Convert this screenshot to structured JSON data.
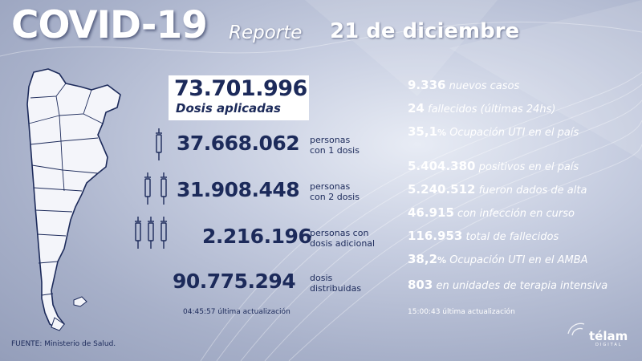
{
  "header": {
    "title": "COVID-19",
    "report_label": "Reporte",
    "date": "21 de diciembre"
  },
  "vaccination": {
    "total_value": "73.701.996",
    "total_label": "Dosis aplicadas",
    "one_dose_value": "37.668.062",
    "one_dose_label": "personas con 1 dosis",
    "two_doses_value": "31.908.448",
    "two_doses_label": "personas con 2 dosis",
    "additional_value": "2.216.196",
    "additional_label": "personas con dosis adicional",
    "distributed_value": "90.775.294",
    "distributed_label": "dosis distribuidas",
    "last_update": "04:45:57 última actualización"
  },
  "cases": {
    "new_cases_value": "9.336",
    "new_cases_label": "nuevos casos",
    "deaths_value": "24",
    "deaths_label": "fallecidos (últimas 24hs)",
    "icu_country_value": "35,1",
    "icu_country_pct": "%",
    "icu_country_label": "Ocupación UTI en el país",
    "positives_value": "5.404.380",
    "positives_label": "positivos en el país",
    "discharged_value": "5.240.512",
    "discharged_label": "fueron dados de alta",
    "active_value": "46.915",
    "active_label": "con infección en curso",
    "total_deaths_value": "116.953",
    "total_deaths_label": "total de fallecidos",
    "icu_amba_value": "38,2",
    "icu_amba_pct": "%",
    "icu_amba_label": "Ocupación UTI en el AMBA",
    "icu_units_value": "803",
    "icu_units_label": "en unidades de terapia intensiva",
    "last_update": "15:00:43 última actualización"
  },
  "footer": {
    "source": "FUENTE: Ministerio de Salud.",
    "brand": "télam",
    "brand_sub": "DIGITAL"
  },
  "icons": [
    "syringe-icon",
    "map-argentina-icon",
    "wifi-signal-icon"
  ],
  "colors": {
    "navy_text": "#1c2a5a",
    "white_text": "#ffffff",
    "background": "#b5bdd3"
  }
}
